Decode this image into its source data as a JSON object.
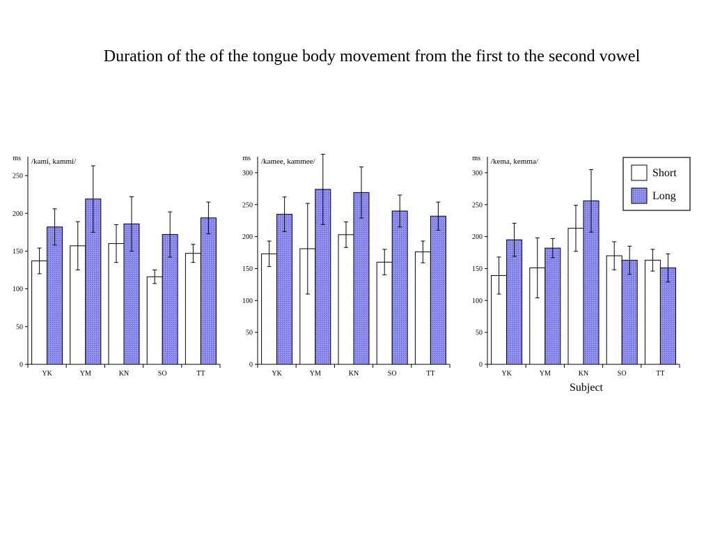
{
  "title": "Duration of the of the tongue body movement from the first to the second vowel",
  "xlabel": "Subject",
  "legend": [
    {
      "name": "Short",
      "color": "#ffffff"
    },
    {
      "name": "Long",
      "color": "#8a8aee"
    }
  ],
  "chart_data": [
    {
      "type": "bar",
      "title": "/kami, kammi/",
      "ylabel": "ms",
      "ylim": [
        0,
        275
      ],
      "yticks": [
        0,
        50,
        100,
        150,
        200,
        250
      ],
      "categories": [
        "YK",
        "YM",
        "KN",
        "SO",
        "TT"
      ],
      "series": [
        {
          "name": "Short",
          "values": [
            137,
            157,
            160,
            116,
            147
          ],
          "errors": [
            17,
            32,
            25,
            9,
            12
          ]
        },
        {
          "name": "Long",
          "values": [
            182,
            219,
            186,
            172,
            194
          ],
          "errors": [
            24,
            44,
            36,
            30,
            21
          ]
        }
      ]
    },
    {
      "type": "bar",
      "title": "/kamee, kammee/",
      "ylabel": "ms",
      "ylim": [
        0,
        325
      ],
      "yticks": [
        0,
        50,
        100,
        150,
        200,
        250,
        300
      ],
      "categories": [
        "YK",
        "YM",
        "KN",
        "SO",
        "TT"
      ],
      "series": [
        {
          "name": "Short",
          "values": [
            173,
            181,
            203,
            160,
            176
          ],
          "errors": [
            20,
            71,
            20,
            20,
            17
          ]
        },
        {
          "name": "Long",
          "values": [
            235,
            274,
            269,
            240,
            232
          ],
          "errors": [
            27,
            55,
            40,
            25,
            22
          ]
        }
      ]
    },
    {
      "type": "bar",
      "title": "/kema, kemma/",
      "ylabel": "ms",
      "ylim": [
        0,
        325
      ],
      "yticks": [
        0,
        50,
        100,
        150,
        200,
        250,
        300
      ],
      "categories": [
        "YK",
        "YM",
        "KN",
        "SO",
        "TT"
      ],
      "series": [
        {
          "name": "Short",
          "values": [
            139,
            151,
            213,
            170,
            163
          ],
          "errors": [
            29,
            47,
            36,
            22,
            17
          ]
        },
        {
          "name": "Long",
          "values": [
            195,
            182,
            256,
            163,
            151
          ],
          "errors": [
            26,
            15,
            49,
            22,
            22
          ]
        }
      ]
    }
  ]
}
